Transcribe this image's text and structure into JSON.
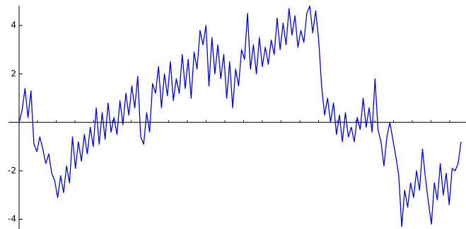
{
  "chart_data": {
    "type": "line",
    "series": [
      {
        "color": "#0000ee",
        "values": [
          0,
          0.5,
          1.4,
          0.2,
          1.3,
          -0.9,
          -1.2,
          -0.6,
          -1.1,
          -1.7,
          -1.3,
          -2.1,
          -2.4,
          -3.1,
          -2.2,
          -2.9,
          -1.8,
          -2.5,
          -0.6,
          -1.9,
          -0.8,
          -1.6,
          -0.5,
          -1.3,
          -0.2,
          -1.0,
          0.6,
          -0.9,
          0.4,
          -0.7,
          0.8,
          -0.4,
          0.2,
          -0.5,
          0.9,
          -0.1,
          1.2,
          0.3,
          1.5,
          0.6,
          1.9,
          -0.6,
          -0.9,
          0.4,
          -0.4,
          1.6,
          1.2,
          2.3,
          0.6,
          2.0,
          1.1,
          2.5,
          0.9,
          1.8,
          1.2,
          2.8,
          1.4,
          2.6,
          1.0,
          2.9,
          2.2,
          3.8,
          3.2,
          4.0,
          1.5,
          3.5,
          2.0,
          3.2,
          1.8,
          2.8,
          1.0,
          2.5,
          0.6,
          2.2,
          1.5,
          3.0,
          2.6,
          4.5,
          2.2,
          3.2,
          2.0,
          3.5,
          2.3,
          3.1,
          2.4,
          3.4,
          2.8,
          4.3,
          3.0,
          4.1,
          3.2,
          4.7,
          3.6,
          4.4,
          3.1,
          3.8,
          3.3,
          4.5,
          4.8,
          3.7,
          4.6,
          3.4,
          1.5,
          0.3,
          1.0,
          0.0,
          0.8,
          -0.5,
          0.3,
          -0.8,
          0.4,
          -0.6,
          -0.2,
          -0.8,
          0.2,
          -0.3,
          1.0,
          -0.2,
          0.6,
          -0.4,
          1.8,
          -0.3,
          -0.8,
          -1.8,
          -0.6,
          0.0,
          -0.7,
          -1.4,
          -2.2,
          -4.3,
          -2.8,
          -3.5,
          -2.5,
          -3.1,
          -2.0,
          -2.8,
          -1.1,
          -2.3,
          -3.3,
          -4.2,
          -2.5,
          -3.2,
          -1.7,
          -3.0,
          -2.1,
          -3.4,
          -1.9,
          -2.0,
          -1.7,
          -0.8
        ]
      }
    ],
    "ylim": [
      -4.4,
      5.05
    ],
    "yticks": [
      -4,
      -2,
      2,
      4
    ]
  }
}
